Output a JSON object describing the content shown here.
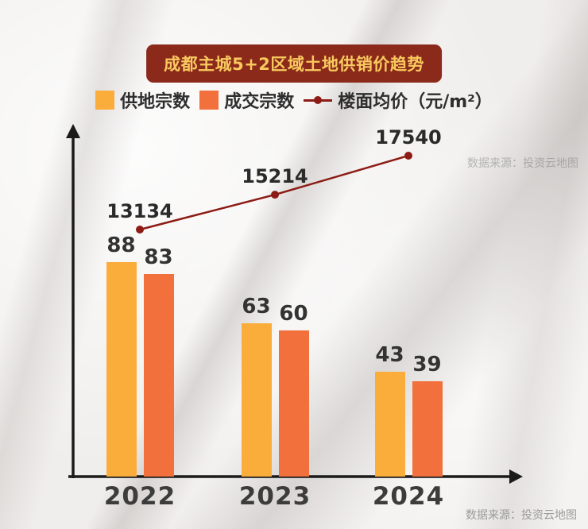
{
  "title": "成都主城5+2区域土地供销价趋势",
  "watermark": "数据来源：投资云地图",
  "source": "数据来源：投资云地图",
  "colors": {
    "supply_bar": "#FBAD3C",
    "deal_bar": "#F2703B",
    "price_line": "#8C1C15",
    "title_bg": "#8B2A1B",
    "title_text": "#F8C95E"
  },
  "chart_data": {
    "type": "bar",
    "title": "成都主城5+2区域土地供销价趋势",
    "categories": [
      "2022",
      "2023",
      "2024"
    ],
    "series": [
      {
        "name": "供地宗数",
        "type": "bar",
        "color": "#FBAD3C",
        "values": [
          88,
          63,
          43
        ]
      },
      {
        "name": "成交宗数",
        "type": "bar",
        "color": "#F2703B",
        "values": [
          83,
          60,
          39
        ]
      },
      {
        "name": "楼面均价（元/m²）",
        "type": "line",
        "color": "#8C1C15",
        "values": [
          13134,
          15214,
          17540
        ]
      }
    ],
    "xlabel": "",
    "ylabel": "",
    "grid": false,
    "legend_position": "top"
  }
}
